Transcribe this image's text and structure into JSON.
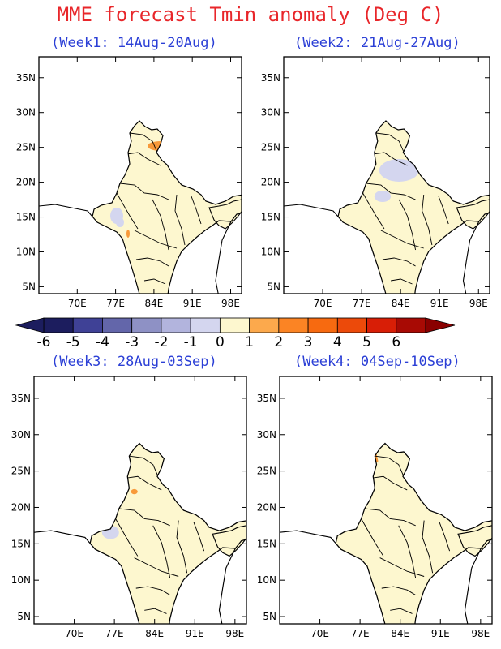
{
  "title": "MME forecast Tmin anomaly (Deg C)",
  "panels": [
    {
      "title": "(Week1: 14Aug-20Aug)"
    },
    {
      "title": "(Week2: 21Aug-27Aug)"
    },
    {
      "title": "(Week3: 28Aug-03Sep)"
    },
    {
      "title": "(Week4: 04Sep-10Sep)"
    }
  ],
  "axes": {
    "lon_ticks": [
      {
        "v": 70,
        "label": "70E"
      },
      {
        "v": 77,
        "label": "77E"
      },
      {
        "v": 84,
        "label": "84E"
      },
      {
        "v": 91,
        "label": "91E"
      },
      {
        "v": 98,
        "label": "98E"
      }
    ],
    "lat_ticks": [
      {
        "v": 35,
        "label": "35N"
      },
      {
        "v": 30,
        "label": "30N"
      },
      {
        "v": 25,
        "label": "25N"
      },
      {
        "v": 20,
        "label": "20N"
      },
      {
        "v": 15,
        "label": "15N"
      },
      {
        "v": 10,
        "label": "10N"
      },
      {
        "v": 5,
        "label": "5N"
      }
    ],
    "lon_range": [
      63,
      100
    ],
    "lat_range": [
      4,
      38
    ]
  },
  "colorbar": {
    "labels": [
      "-6",
      "-5",
      "-4",
      "-3",
      "-2",
      "-1",
      "0",
      "1",
      "2",
      "3",
      "4",
      "5",
      "6"
    ],
    "colors": [
      "#1c1d5e",
      "#3f4196",
      "#6366aa",
      "#8e91c5",
      "#b2b4dd",
      "#d4d6ef",
      "#fdf7cf",
      "#fca94c",
      "#fb8424",
      "#f76a10",
      "#ec4a0a",
      "#d81e06",
      "#a80a04"
    ]
  },
  "map_colors": {
    "base": "#fdf7cf",
    "cool": "#d4d6ef",
    "cool2": "#b2b4dd",
    "cool_dark": "#3f4196",
    "warm": "#f89a3a"
  }
}
